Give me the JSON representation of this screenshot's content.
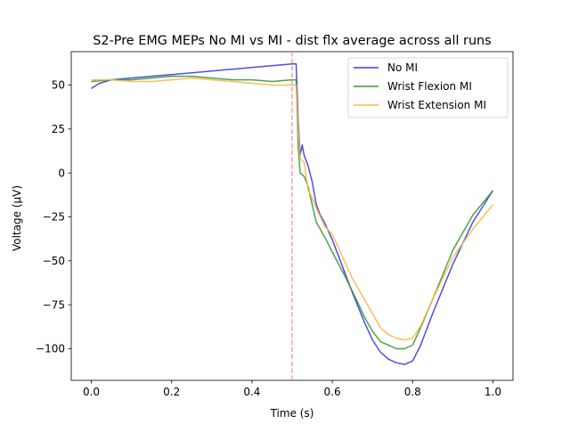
{
  "chart_data": {
    "type": "line",
    "title": "S2-Pre EMG MEPs No MI vs MI - dist flx average across all runs",
    "xlabel": "Time (s)",
    "ylabel": "Voltage (µV)",
    "xlim": [
      -0.05,
      1.05
    ],
    "ylim": [
      -118,
      69
    ],
    "xticks": [
      0.0,
      0.2,
      0.4,
      0.6,
      0.8,
      1.0
    ],
    "xtick_labels": [
      "0.0",
      "0.2",
      "0.4",
      "0.6",
      "0.8",
      "1.0"
    ],
    "yticks": [
      50,
      25,
      0,
      -25,
      -50,
      -75,
      -100
    ],
    "ytick_labels": [
      "50",
      "25",
      "0",
      "−25",
      "−50",
      "−75",
      "−100"
    ],
    "grid": false,
    "legend_position": "top-right",
    "annotations": [
      {
        "type": "vertical-dashed-line",
        "x": 0.5,
        "color": "#f4a3a3"
      }
    ],
    "series": [
      {
        "name": "No MI",
        "color": "#3c3cde",
        "x": [
          0.0,
          0.02,
          0.05,
          0.1,
          0.15,
          0.2,
          0.25,
          0.3,
          0.35,
          0.4,
          0.45,
          0.5,
          0.51,
          0.515,
          0.52,
          0.525,
          0.53,
          0.54,
          0.55,
          0.56,
          0.57,
          0.58,
          0.6,
          0.62,
          0.65,
          0.68,
          0.7,
          0.72,
          0.74,
          0.76,
          0.78,
          0.8,
          0.82,
          0.85,
          0.9,
          0.95,
          1.0
        ],
        "values": [
          48,
          51,
          53,
          54,
          55,
          56,
          57,
          58,
          59,
          60,
          61,
          62,
          62,
          30,
          10,
          16,
          10,
          4,
          -5,
          -18,
          -24,
          -28,
          -38,
          -50,
          -68,
          -85,
          -95,
          -102,
          -106,
          -108,
          -109,
          -107,
          -98,
          -80,
          -52,
          -28,
          -10
        ]
      },
      {
        "name": "Wrist Flexion MI",
        "color": "#3a993a",
        "x": [
          0.0,
          0.05,
          0.1,
          0.15,
          0.2,
          0.25,
          0.3,
          0.35,
          0.4,
          0.45,
          0.5,
          0.51,
          0.515,
          0.52,
          0.53,
          0.54,
          0.55,
          0.56,
          0.58,
          0.6,
          0.63,
          0.66,
          0.68,
          0.7,
          0.72,
          0.74,
          0.76,
          0.78,
          0.8,
          0.82,
          0.85,
          0.9,
          0.95,
          1.0
        ],
        "values": [
          52,
          53,
          53,
          54,
          55,
          55,
          54,
          53,
          53,
          52,
          53,
          53,
          15,
          0,
          -2,
          -8,
          -18,
          -28,
          -36,
          -45,
          -58,
          -72,
          -82,
          -90,
          -96,
          -98,
          -100,
          -100,
          -98,
          -88,
          -72,
          -44,
          -24,
          -10
        ]
      },
      {
        "name": "Wrist Extension MI",
        "color": "#f7b847",
        "x": [
          0.0,
          0.05,
          0.1,
          0.15,
          0.2,
          0.25,
          0.3,
          0.35,
          0.4,
          0.45,
          0.5,
          0.51,
          0.515,
          0.52,
          0.53,
          0.54,
          0.55,
          0.56,
          0.58,
          0.6,
          0.62,
          0.65,
          0.68,
          0.7,
          0.72,
          0.74,
          0.76,
          0.78,
          0.8,
          0.82,
          0.85,
          0.9,
          0.95,
          1.0
        ],
        "values": [
          53,
          53,
          52,
          52,
          53,
          54,
          53,
          52,
          51,
          50,
          50,
          50,
          25,
          8,
          6,
          -10,
          -14,
          -20,
          -30,
          -35,
          -45,
          -60,
          -72,
          -80,
          -88,
          -92,
          -94,
          -95,
          -94,
          -87,
          -72,
          -48,
          -32,
          -18
        ]
      }
    ]
  }
}
